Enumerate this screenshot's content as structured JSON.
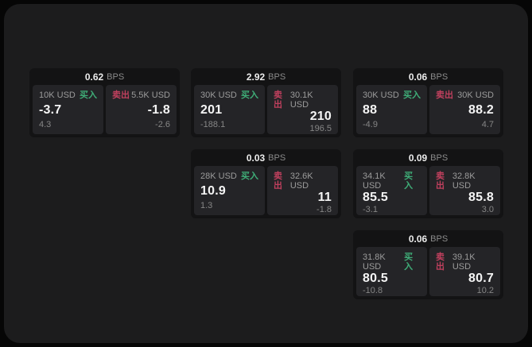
{
  "labels": {
    "unit": "BPS",
    "buy": "买入",
    "sell": "卖出"
  },
  "colors": {
    "page_bg": "#060606",
    "panel_bg": "#1c1c1d",
    "card_bg": "#131314",
    "cell_bg": "#242427",
    "buy_green": "#3fae78",
    "sell_red": "#c0405e"
  },
  "cards": [
    {
      "bps": "0.62",
      "buy": {
        "amount": "10K USD",
        "price": "-3.7",
        "delta": "4.3"
      },
      "sell": {
        "amount": "5.5K USD",
        "price": "-1.8",
        "delta": "-2.6"
      }
    },
    {
      "bps": "2.92",
      "buy": {
        "amount": "30K USD",
        "price": "201",
        "delta": "-188.1"
      },
      "sell": {
        "amount": "30.1K USD",
        "price": "210",
        "delta": "196.5"
      }
    },
    {
      "bps": "0.06",
      "buy": {
        "amount": "30K USD",
        "price": "88",
        "delta": "-4.9"
      },
      "sell": {
        "amount": "30K USD",
        "price": "88.2",
        "delta": "4.7"
      }
    },
    {
      "bps": "0.03",
      "buy": {
        "amount": "28K USD",
        "price": "10.9",
        "delta": "1.3"
      },
      "sell": {
        "amount": "32.6K USD",
        "price": "11",
        "delta": "-1.8"
      }
    },
    {
      "bps": "0.09",
      "buy": {
        "amount": "34.1K USD",
        "price": "85.5",
        "delta": "-3.1"
      },
      "sell": {
        "amount": "32.8K USD",
        "price": "85.8",
        "delta": "3.0"
      }
    },
    {
      "bps": "0.06",
      "buy": {
        "amount": "31.8K USD",
        "price": "80.5",
        "delta": "-10.8"
      },
      "sell": {
        "amount": "39.1K USD",
        "price": "80.7",
        "delta": "10.2"
      }
    }
  ]
}
